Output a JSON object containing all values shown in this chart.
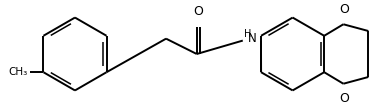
{
  "figsize": [
    3.88,
    1.08
  ],
  "dpi": 100,
  "bg_color": "#ffffff",
  "bond_color": "black",
  "lw": 1.4,
  "lw_inner": 1.1,
  "lcx": 0.175,
  "lcy": 0.5,
  "lr": 0.145,
  "rcx": 0.665,
  "rcy": 0.5,
  "rr": 0.145,
  "methyl_label": "CH₃",
  "o_label": "O",
  "nh_label": "NH",
  "xlim": [
    0,
    1
  ],
  "ylim": [
    0,
    1
  ]
}
